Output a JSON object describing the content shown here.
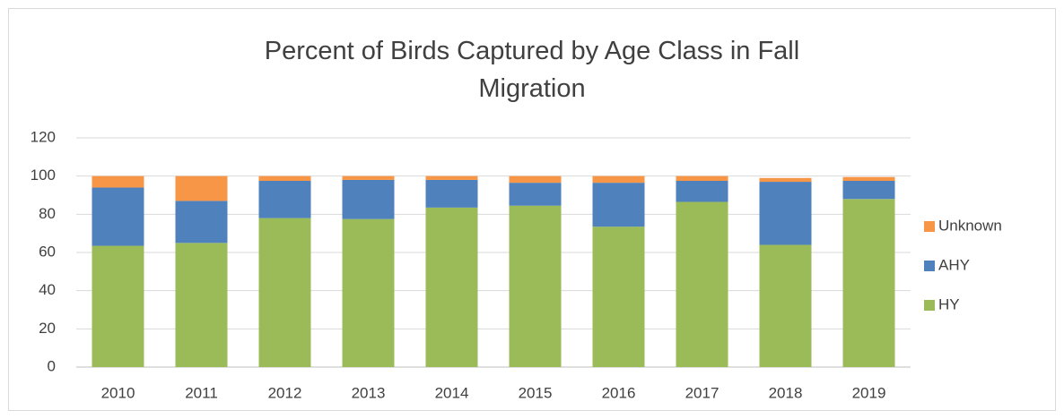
{
  "chart_data": {
    "type": "stacked_bar",
    "title": "Percent of Birds Captured by Age Class in Fall Migration",
    "categories": [
      "2010",
      "2011",
      "2012",
      "2013",
      "2014",
      "2015",
      "2016",
      "2017",
      "2018",
      "2019"
    ],
    "series": [
      {
        "name": "HY",
        "color": "#9bbb59",
        "values": [
          63.5,
          65,
          78,
          77.5,
          83.5,
          84.5,
          73.5,
          86.5,
          64,
          88
        ]
      },
      {
        "name": "AHY",
        "color": "#4f81bd",
        "values": [
          30.5,
          22,
          19.5,
          20.5,
          14.5,
          12,
          23,
          11,
          33,
          9.5
        ]
      },
      {
        "name": "Unknown",
        "color": "#f79646",
        "values": [
          6,
          13,
          2.5,
          2,
          2,
          3.5,
          3.5,
          2.5,
          2,
          2
        ]
      }
    ],
    "ylim": [
      0,
      120
    ],
    "yticks": [
      0,
      20,
      40,
      60,
      80,
      100,
      120
    ],
    "grid": true,
    "legend": "right"
  }
}
